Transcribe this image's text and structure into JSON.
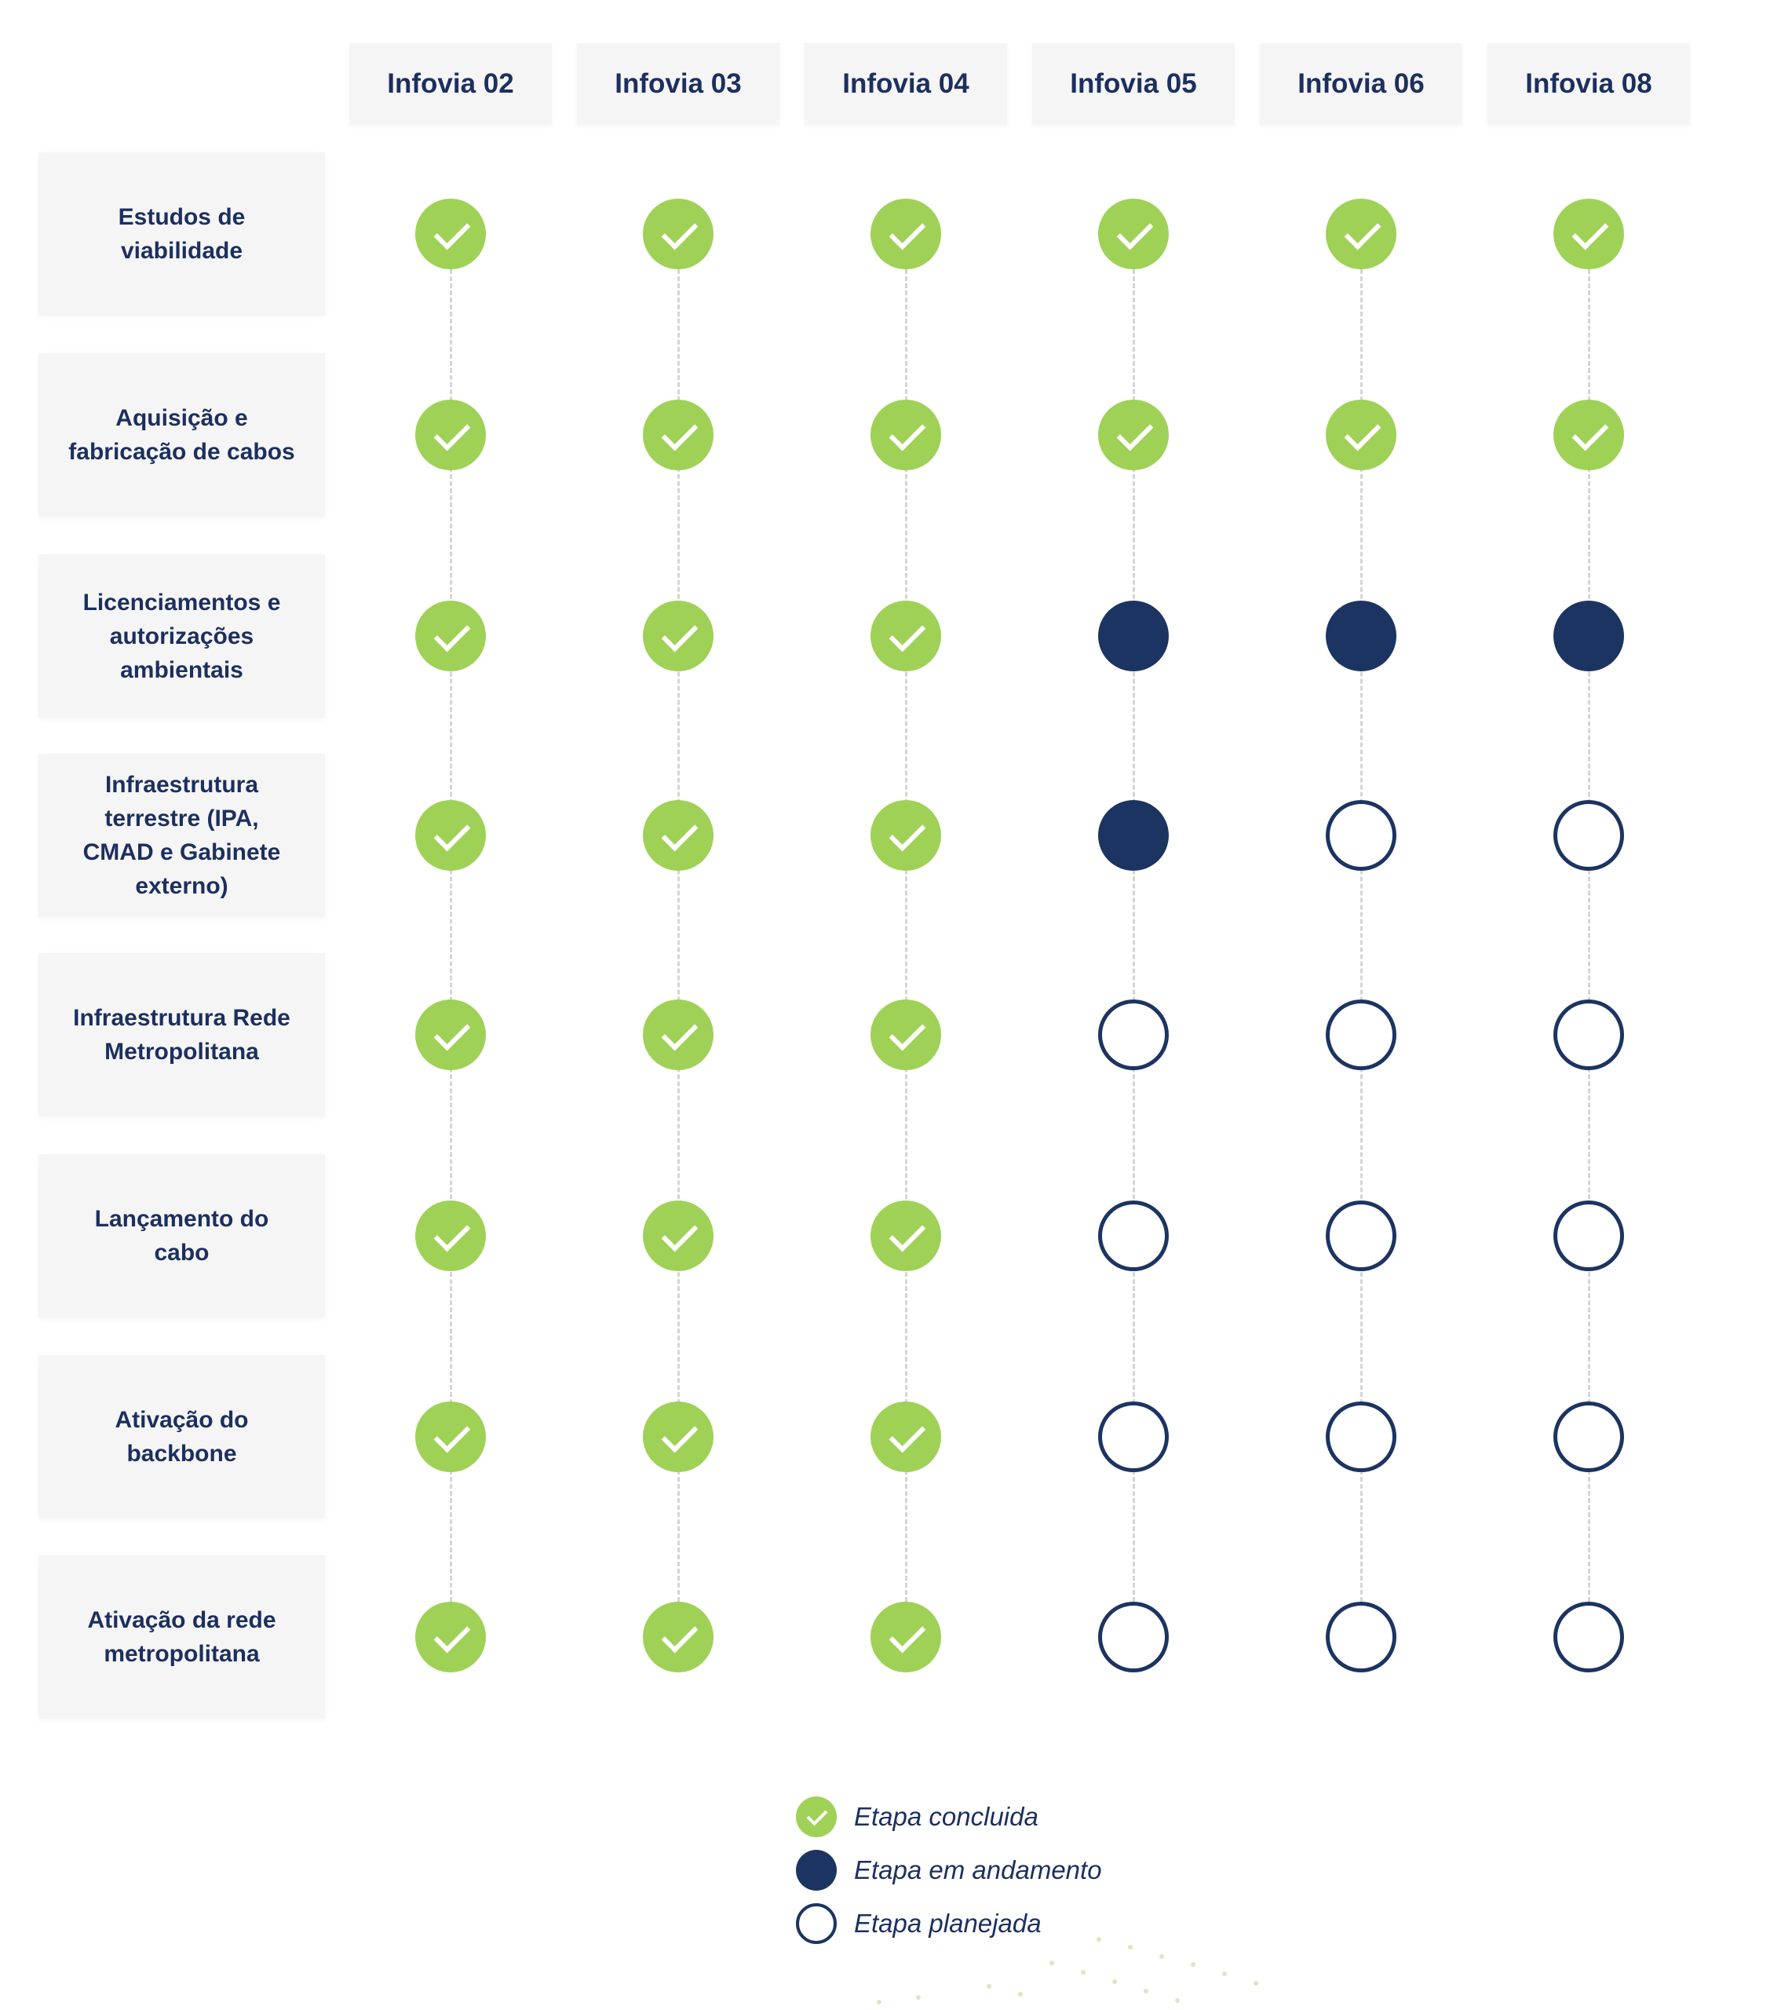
{
  "columns": [
    "Infovia 02",
    "Infovia 03",
    "Infovia 04",
    "Infovia 05",
    "Infovia 06",
    "Infovia 08"
  ],
  "rows": [
    {
      "label": "Estudos de viabilidade",
      "statuses": [
        "done",
        "done",
        "done",
        "done",
        "done",
        "done"
      ]
    },
    {
      "label": "Aquisição e fabricação de cabos",
      "statuses": [
        "done",
        "done",
        "done",
        "done",
        "done",
        "done"
      ]
    },
    {
      "label": "Licenciamentos e autorizações ambientais",
      "statuses": [
        "done",
        "done",
        "done",
        "progress",
        "progress",
        "progress"
      ]
    },
    {
      "label": "Infraestrutura terrestre (IPA, CMAD e Gabinete externo)",
      "statuses": [
        "done",
        "done",
        "done",
        "progress",
        "planned",
        "planned"
      ]
    },
    {
      "label": "Infraestrutura Rede Metropolitana",
      "statuses": [
        "done",
        "done",
        "done",
        "planned",
        "planned",
        "planned"
      ]
    },
    {
      "label": "Lançamento do cabo",
      "statuses": [
        "done",
        "done",
        "done",
        "planned",
        "planned",
        "planned"
      ]
    },
    {
      "label": "Ativação do backbone",
      "statuses": [
        "done",
        "done",
        "done",
        "planned",
        "planned",
        "planned"
      ]
    },
    {
      "label": "Ativação da rede metropolitana",
      "statuses": [
        "done",
        "done",
        "done",
        "planned",
        "planned",
        "planned"
      ]
    }
  ],
  "legend": {
    "done": "Etapa concluida",
    "progress": "Etapa em andamento",
    "planned": "Etapa planejada"
  },
  "colors": {
    "done": "#9fd157",
    "progress": "#1c3461",
    "text": "#1c2f5e"
  }
}
